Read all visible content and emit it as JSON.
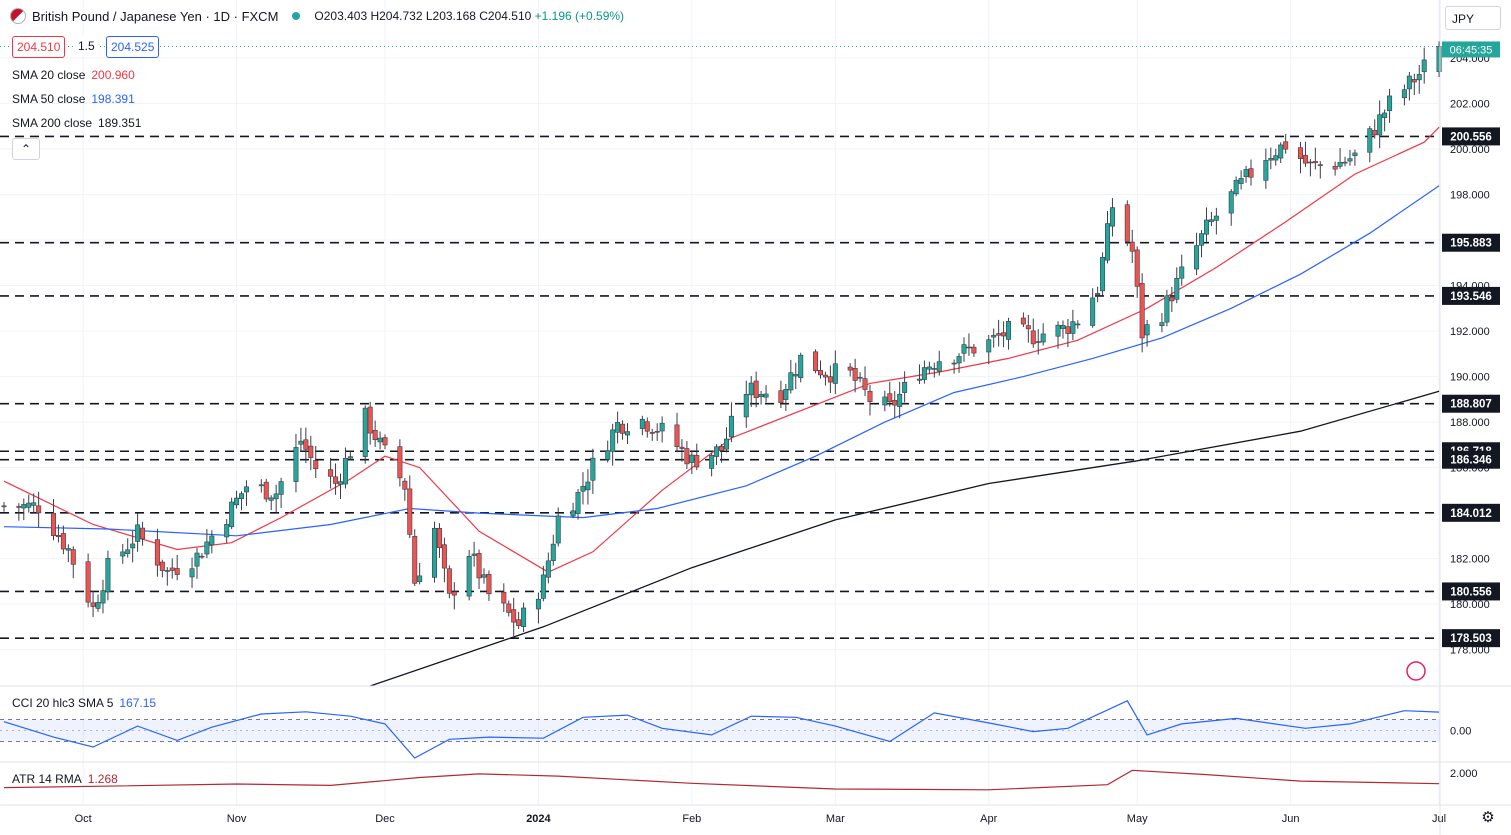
{
  "header": {
    "symbol": "British Pound / Japanese Yen · 1D · FXCM",
    "open": "O203.403",
    "high": "H204.732",
    "low": "L203.168",
    "close": "C204.510",
    "change": "+1.196 (+0.59%)",
    "sell_price": "204.510",
    "spread": "1.5",
    "buy_price": "204.525",
    "currency": "JPY",
    "countdown": "06:45:35"
  },
  "colors": {
    "up": "#26a69a",
    "down": "#ef5350",
    "sma20": "#f23645",
    "sma50": "#2962ff",
    "sma200": "#131722",
    "cci": "#2962ff",
    "atr": "#b22833"
  },
  "indicators": {
    "sma20": {
      "label": "SMA 20 close",
      "value": "200.960"
    },
    "sma50": {
      "label": "SMA 50 close",
      "value": "198.391"
    },
    "sma200": {
      "label": "SMA 200 close",
      "value": "189.351"
    },
    "cci": {
      "label": "CCI 20 hlc3 SMA 5",
      "value": "167.15"
    },
    "atr": {
      "label": "ATR 14 RMA",
      "value": "1.268"
    }
  },
  "chart_data": [
    {
      "type": "candlestick",
      "pair": "GBP/JPY",
      "timeframe": "1D",
      "x_tick_labels": [
        "Oct",
        "Nov",
        "Dec",
        "2024",
        "Feb",
        "Mar",
        "Apr",
        "May",
        "Jun",
        "Jul"
      ],
      "y_tick_labels": [
        "178.000",
        "180.000",
        "182.000",
        "184.000",
        "186.000",
        "188.000",
        "190.000",
        "192.000",
        "194.000",
        "196.000",
        "198.000",
        "200.000",
        "202.000",
        "204.000"
      ],
      "ylim": [
        176.4,
        206.2
      ],
      "horizontal_levels": [
        200.556,
        195.883,
        193.546,
        188.807,
        186.718,
        186.346,
        184.012,
        180.556,
        178.503
      ],
      "level_labels": [
        "200.556",
        "195.883",
        "193.546",
        "188.807",
        "186.718",
        "186.346",
        "184.012",
        "180.556",
        "178.503"
      ],
      "last_price": "204.510",
      "anchors": [
        {
          "d": "2023-09-22",
          "c": 184.3
        },
        {
          "d": "2023-09-28",
          "c": 182.4
        },
        {
          "d": "2023-10-03",
          "c": 179.8
        },
        {
          "d": "2023-10-06",
          "c": 181.6
        },
        {
          "d": "2023-10-12",
          "c": 183.1
        },
        {
          "d": "2023-10-18",
          "c": 181.4
        },
        {
          "d": "2023-10-24",
          "c": 182.1
        },
        {
          "d": "2023-10-30",
          "c": 183.9
        },
        {
          "d": "2023-11-03",
          "c": 185.2
        },
        {
          "d": "2023-11-09",
          "c": 184.9
        },
        {
          "d": "2023-11-14",
          "c": 187.2
        },
        {
          "d": "2023-11-17",
          "c": 186.0
        },
        {
          "d": "2023-11-21",
          "c": 185.3
        },
        {
          "d": "2023-11-27",
          "c": 188.2
        },
        {
          "d": "2023-11-30",
          "c": 187.0
        },
        {
          "d": "2023-12-05",
          "c": 185.2
        },
        {
          "d": "2023-12-07",
          "c": 181.0
        },
        {
          "d": "2023-12-11",
          "c": 183.3
        },
        {
          "d": "2023-12-14",
          "c": 180.2
        },
        {
          "d": "2023-12-18",
          "c": 182.3
        },
        {
          "d": "2023-12-22",
          "c": 180.4
        },
        {
          "d": "2023-12-28",
          "c": 179.1
        },
        {
          "d": "2024-01-02",
          "c": 181.0
        },
        {
          "d": "2024-01-05",
          "c": 183.8
        },
        {
          "d": "2024-01-09",
          "c": 184.8
        },
        {
          "d": "2024-01-12",
          "c": 186.1
        },
        {
          "d": "2024-01-17",
          "c": 187.9
        },
        {
          "d": "2024-01-22",
          "c": 188.1
        },
        {
          "d": "2024-01-26",
          "c": 187.6
        },
        {
          "d": "2024-02-01",
          "c": 186.3
        },
        {
          "d": "2024-02-07",
          "c": 186.8
        },
        {
          "d": "2024-02-12",
          "c": 189.4
        },
        {
          "d": "2024-02-19",
          "c": 189.3
        },
        {
          "d": "2024-02-23",
          "c": 190.8
        },
        {
          "d": "2024-02-28",
          "c": 190.2
        },
        {
          "d": "2024-03-04",
          "c": 190.1
        },
        {
          "d": "2024-03-08",
          "c": 189.0
        },
        {
          "d": "2024-03-12",
          "c": 188.6
        },
        {
          "d": "2024-03-18",
          "c": 190.3
        },
        {
          "d": "2024-03-22",
          "c": 190.8
        },
        {
          "d": "2024-03-27",
          "c": 191.1
        },
        {
          "d": "2024-04-01",
          "c": 191.5
        },
        {
          "d": "2024-04-05",
          "c": 192.0
        },
        {
          "d": "2024-04-10",
          "c": 191.8
        },
        {
          "d": "2024-04-16",
          "c": 192.1
        },
        {
          "d": "2024-04-19",
          "c": 192.5
        },
        {
          "d": "2024-04-23",
          "c": 193.9
        },
        {
          "d": "2024-04-26",
          "c": 197.5
        },
        {
          "d": "2024-04-30",
          "c": 195.5
        },
        {
          "d": "2024-05-02",
          "c": 191.9
        },
        {
          "d": "2024-05-06",
          "c": 192.8
        },
        {
          "d": "2024-05-10",
          "c": 194.5
        },
        {
          "d": "2024-05-15",
          "c": 196.5
        },
        {
          "d": "2024-05-21",
          "c": 198.2
        },
        {
          "d": "2024-05-27",
          "c": 199.7
        },
        {
          "d": "2024-05-31",
          "c": 200.2
        },
        {
          "d": "2024-06-05",
          "c": 199.2
        },
        {
          "d": "2024-06-11",
          "c": 199.4
        },
        {
          "d": "2024-06-14",
          "c": 199.7
        },
        {
          "d": "2024-06-17",
          "c": 200.6
        },
        {
          "d": "2024-06-21",
          "c": 202.0
        },
        {
          "d": "2024-06-27",
          "c": 203.3
        },
        {
          "d": "2024-07-01",
          "c": 204.51
        }
      ],
      "sma20_points": [
        {
          "d": "2023-09-15",
          "v": 185.4
        },
        {
          "d": "2023-10-03",
          "v": 183.5
        },
        {
          "d": "2023-10-20",
          "v": 182.4
        },
        {
          "d": "2023-10-31",
          "v": 182.7
        },
        {
          "d": "2023-11-10",
          "v": 183.8
        },
        {
          "d": "2023-11-24",
          "v": 185.5
        },
        {
          "d": "2023-12-01",
          "v": 186.5
        },
        {
          "d": "2023-12-08",
          "v": 186.0
        },
        {
          "d": "2023-12-20",
          "v": 183.2
        },
        {
          "d": "2024-01-03",
          "v": 181.4
        },
        {
          "d": "2024-01-12",
          "v": 182.3
        },
        {
          "d": "2024-01-26",
          "v": 185.0
        },
        {
          "d": "2024-02-09",
          "v": 187.3
        },
        {
          "d": "2024-02-23",
          "v": 188.5
        },
        {
          "d": "2024-03-08",
          "v": 189.7
        },
        {
          "d": "2024-03-22",
          "v": 190.2
        },
        {
          "d": "2024-04-05",
          "v": 190.8
        },
        {
          "d": "2024-04-19",
          "v": 191.6
        },
        {
          "d": "2024-05-03",
          "v": 193.0
        },
        {
          "d": "2024-05-17",
          "v": 194.8
        },
        {
          "d": "2024-05-31",
          "v": 196.8
        },
        {
          "d": "2024-06-14",
          "v": 198.9
        },
        {
          "d": "2024-06-28",
          "v": 200.3
        },
        {
          "d": "2024-07-01",
          "v": 200.96
        }
      ],
      "sma50_points": [
        {
          "d": "2023-09-15",
          "v": 183.4
        },
        {
          "d": "2023-10-06",
          "v": 183.3
        },
        {
          "d": "2023-11-01",
          "v": 183.0
        },
        {
          "d": "2023-11-20",
          "v": 183.5
        },
        {
          "d": "2023-12-06",
          "v": 184.2
        },
        {
          "d": "2023-12-20",
          "v": 184.0
        },
        {
          "d": "2024-01-10",
          "v": 183.8
        },
        {
          "d": "2024-01-25",
          "v": 184.2
        },
        {
          "d": "2024-02-12",
          "v": 185.2
        },
        {
          "d": "2024-02-26",
          "v": 186.5
        },
        {
          "d": "2024-03-11",
          "v": 188.0
        },
        {
          "d": "2024-03-25",
          "v": 189.3
        },
        {
          "d": "2024-04-08",
          "v": 190.0
        },
        {
          "d": "2024-04-22",
          "v": 190.8
        },
        {
          "d": "2024-05-06",
          "v": 191.7
        },
        {
          "d": "2024-05-20",
          "v": 193.0
        },
        {
          "d": "2024-06-03",
          "v": 194.5
        },
        {
          "d": "2024-06-17",
          "v": 196.3
        },
        {
          "d": "2024-07-01",
          "v": 198.391
        }
      ],
      "sma200_points": [
        {
          "d": "2023-11-28",
          "v": 176.4
        },
        {
          "d": "2024-01-02",
          "v": 179.0
        },
        {
          "d": "2024-02-01",
          "v": 181.6
        },
        {
          "d": "2024-03-01",
          "v": 183.7
        },
        {
          "d": "2024-04-01",
          "v": 185.3
        },
        {
          "d": "2024-05-01",
          "v": 186.3
        },
        {
          "d": "2024-06-03",
          "v": 187.6
        },
        {
          "d": "2024-07-01",
          "v": 189.351
        }
      ]
    },
    {
      "type": "line",
      "name": "CCI 20 hlc3 SMA 5",
      "y_tick_labels": [
        "0.00"
      ],
      "ylim": [
        -250,
        350
      ],
      "band": [
        -100,
        100
      ],
      "points": [
        {
          "d": "2023-09-15",
          "v": 80
        },
        {
          "d": "2023-09-25",
          "v": -60
        },
        {
          "d": "2023-10-03",
          "v": -150
        },
        {
          "d": "2023-10-12",
          "v": 40
        },
        {
          "d": "2023-10-20",
          "v": -90
        },
        {
          "d": "2023-10-27",
          "v": 30
        },
        {
          "d": "2023-11-06",
          "v": 150
        },
        {
          "d": "2023-11-15",
          "v": 170
        },
        {
          "d": "2023-11-24",
          "v": 130
        },
        {
          "d": "2023-12-01",
          "v": 60
        },
        {
          "d": "2023-12-07",
          "v": -250
        },
        {
          "d": "2023-12-14",
          "v": -80
        },
        {
          "d": "2023-12-22",
          "v": -60
        },
        {
          "d": "2024-01-02",
          "v": -70
        },
        {
          "d": "2024-01-10",
          "v": 120
        },
        {
          "d": "2024-01-19",
          "v": 140
        },
        {
          "d": "2024-01-26",
          "v": 20
        },
        {
          "d": "2024-02-05",
          "v": -40
        },
        {
          "d": "2024-02-13",
          "v": 130
        },
        {
          "d": "2024-02-22",
          "v": 120
        },
        {
          "d": "2024-03-01",
          "v": 40
        },
        {
          "d": "2024-03-12",
          "v": -100
        },
        {
          "d": "2024-03-21",
          "v": 160
        },
        {
          "d": "2024-04-02",
          "v": 60
        },
        {
          "d": "2024-04-10",
          "v": -10
        },
        {
          "d": "2024-04-17",
          "v": 20
        },
        {
          "d": "2024-04-29",
          "v": 270
        },
        {
          "d": "2024-05-03",
          "v": -40
        },
        {
          "d": "2024-05-10",
          "v": 60
        },
        {
          "d": "2024-05-21",
          "v": 110
        },
        {
          "d": "2024-06-04",
          "v": 20
        },
        {
          "d": "2024-06-13",
          "v": 60
        },
        {
          "d": "2024-06-24",
          "v": 180
        },
        {
          "d": "2024-07-01",
          "v": 167.15
        }
      ]
    },
    {
      "type": "line",
      "name": "ATR 14 RMA",
      "y_tick_labels": [
        "2.000"
      ],
      "ylim": [
        0,
        2.5
      ],
      "points": [
        {
          "d": "2023-09-15",
          "v": 1.0
        },
        {
          "d": "2023-10-05",
          "v": 1.1
        },
        {
          "d": "2023-11-01",
          "v": 1.25
        },
        {
          "d": "2023-11-20",
          "v": 1.15
        },
        {
          "d": "2023-12-08",
          "v": 1.7
        },
        {
          "d": "2023-12-20",
          "v": 1.95
        },
        {
          "d": "2024-01-05",
          "v": 1.8
        },
        {
          "d": "2024-02-01",
          "v": 1.3
        },
        {
          "d": "2024-03-01",
          "v": 0.9
        },
        {
          "d": "2024-04-01",
          "v": 0.85
        },
        {
          "d": "2024-04-25",
          "v": 1.2
        },
        {
          "d": "2024-04-30",
          "v": 2.2
        },
        {
          "d": "2024-05-15",
          "v": 1.9
        },
        {
          "d": "2024-06-03",
          "v": 1.45
        },
        {
          "d": "2024-06-20",
          "v": 1.35
        },
        {
          "d": "2024-07-01",
          "v": 1.268
        }
      ]
    }
  ]
}
